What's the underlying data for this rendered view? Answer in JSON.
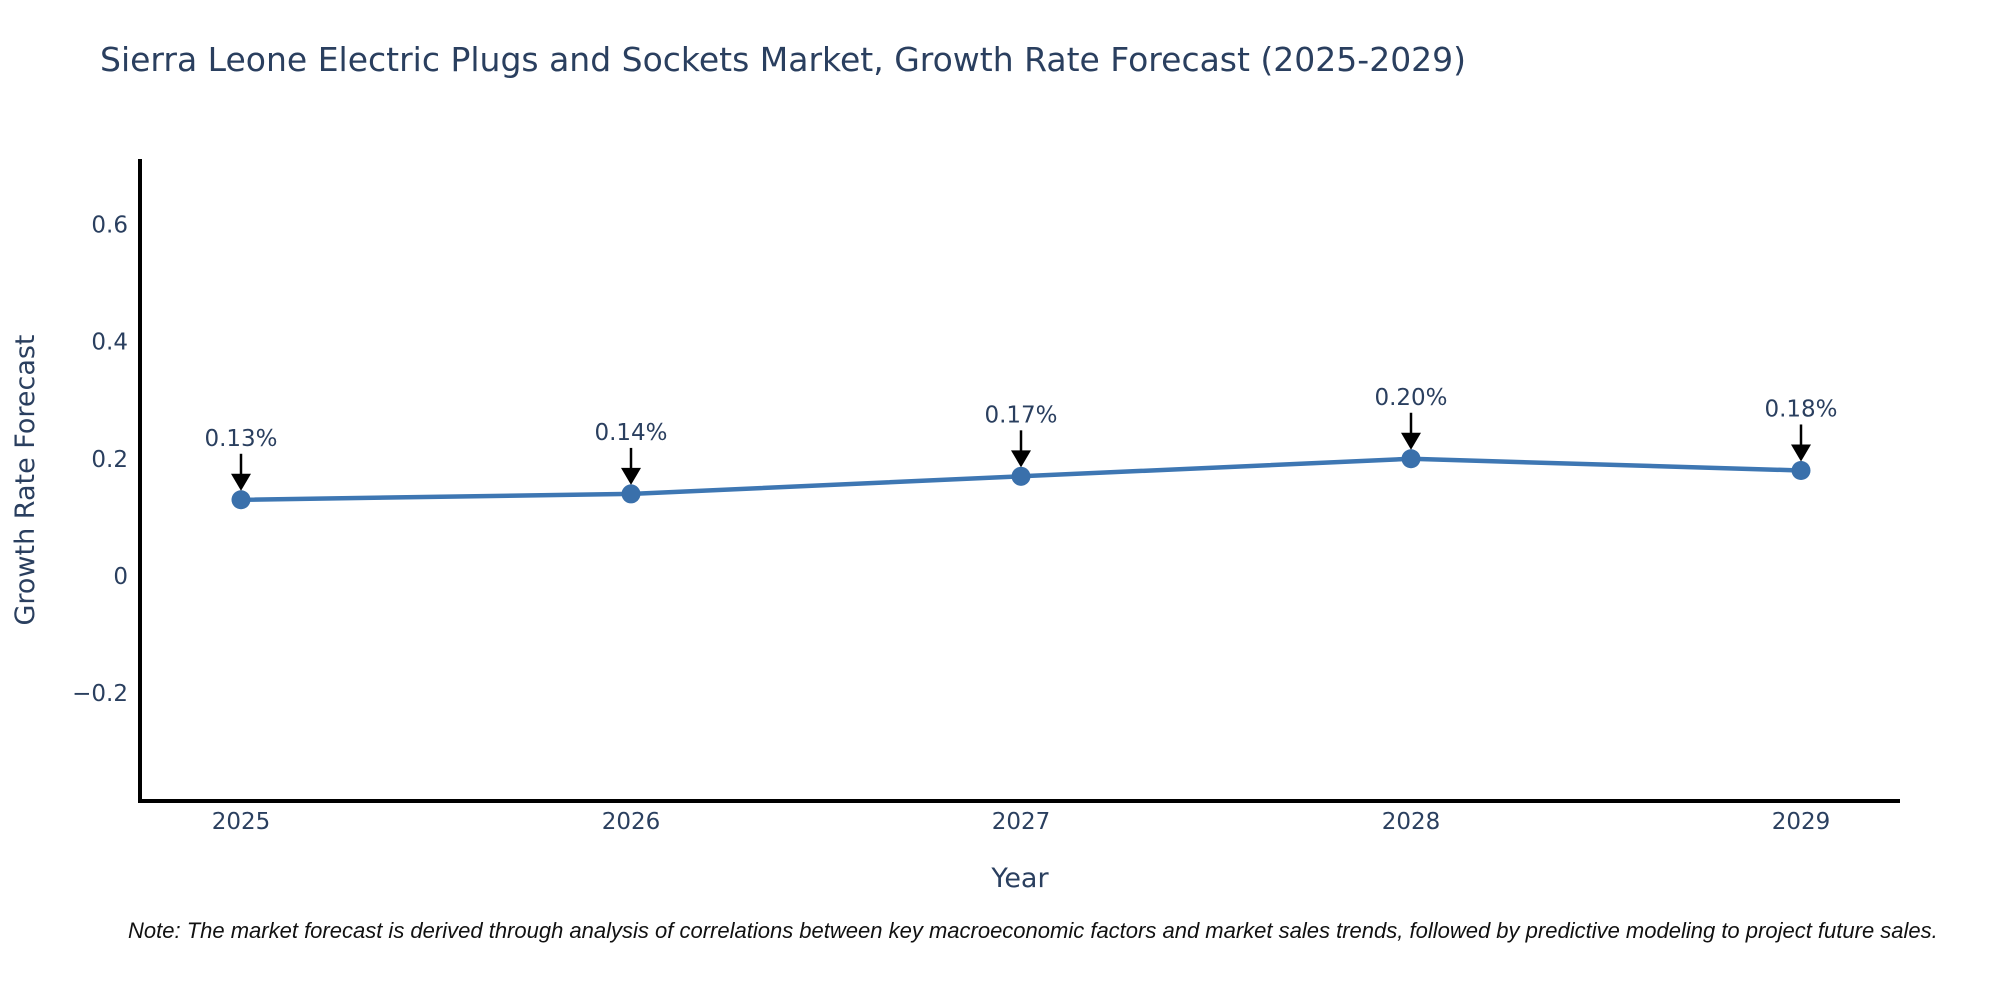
{
  "page": {
    "title": "Sierra Leone Electric Plugs and Sockets Market, Growth Rate Forecast (2025-2029)",
    "note": "Note: The market forecast is derived through analysis of correlations between key macroeconomic factors and market sales trends, followed by predictive modeling to project future sales."
  },
  "chart_data": {
    "type": "line",
    "title": "Sierra Leone Electric Plugs and Sockets Market, Growth Rate Forecast (2025-2029)",
    "xlabel": "Year",
    "ylabel": "Growth Rate Forecast",
    "categories": [
      "2025",
      "2026",
      "2027",
      "2028",
      "2029"
    ],
    "series": [
      {
        "name": "Growth Rate Forecast",
        "values": [
          0.13,
          0.14,
          0.17,
          0.2,
          0.18
        ]
      }
    ],
    "point_labels": [
      "0.13%",
      "0.14%",
      "0.17%",
      "0.20%",
      "0.18%"
    ],
    "yticks": [
      {
        "label": "0.6",
        "value": 0.6
      },
      {
        "label": "0.4",
        "value": 0.4
      },
      {
        "label": "0.2",
        "value": 0.2
      },
      {
        "label": "0",
        "value": 0.0
      },
      {
        "label": "−0.2",
        "value": -0.2
      }
    ],
    "ylim": [
      -0.384,
      0.7115
    ],
    "grid": false,
    "legend_position": "none",
    "colors": {
      "line": "#3e77b3",
      "marker": "#3a70ab",
      "axis": "#000000",
      "text": "#2a3f5f",
      "annotation_text": "#2a3f5f",
      "arrow": "#000000",
      "background": "#ffffff"
    }
  }
}
